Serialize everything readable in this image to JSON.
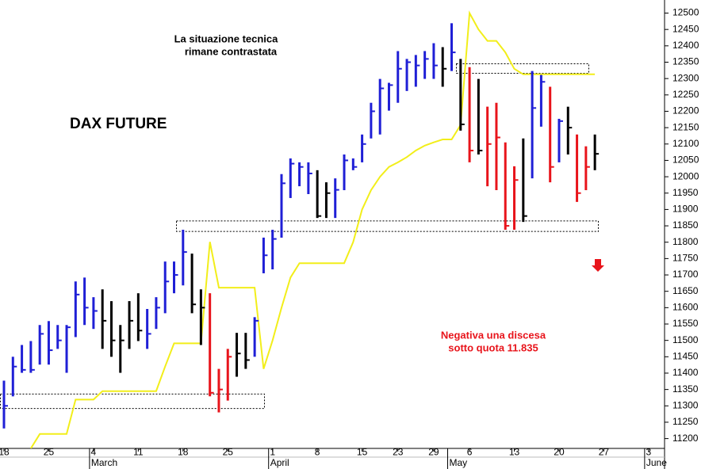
{
  "chart_data": {
    "type": "ohlc",
    "title": "DAX FUTURE",
    "annotations": [
      {
        "lines": [
          "La situazione tecnica",
          "rimane contrastata"
        ],
        "color": "#000000"
      },
      {
        "lines": [
          "Negativa una discesa",
          "sotto quota 11.835"
        ],
        "color": "#e8141b"
      }
    ],
    "categories": [
      "18",
      null,
      null,
      null,
      null,
      "25",
      null,
      null,
      null,
      null,
      "4",
      null,
      null,
      null,
      null,
      "11",
      null,
      null,
      null,
      null,
      "18",
      null,
      null,
      null,
      null,
      "25",
      null,
      null,
      null,
      null,
      "1",
      null,
      null,
      null,
      null,
      "8",
      null,
      null,
      null,
      null,
      "15",
      null,
      null,
      null,
      "23",
      null,
      null,
      null,
      "29",
      null,
      null,
      null,
      "6",
      null,
      null,
      null,
      null,
      "13",
      null,
      null,
      null,
      null,
      "20",
      null,
      null,
      null,
      null,
      "27",
      null,
      null,
      null,
      null,
      "3"
    ],
    "months": [
      null,
      null,
      null,
      null,
      null,
      null,
      null,
      null,
      null,
      null,
      "March",
      null,
      null,
      null,
      null,
      null,
      null,
      null,
      null,
      null,
      null,
      null,
      null,
      null,
      null,
      null,
      null,
      null,
      null,
      null,
      "April",
      null,
      null,
      null,
      null,
      null,
      null,
      null,
      null,
      null,
      null,
      null,
      null,
      null,
      null,
      null,
      null,
      null,
      null,
      null,
      "May",
      null,
      null,
      null,
      null,
      null,
      null,
      null,
      null,
      null,
      null,
      null,
      null,
      null,
      null,
      null,
      null,
      null,
      null,
      null,
      null,
      null,
      "June"
    ],
    "high": [
      11377,
      11450,
      11486,
      11498,
      11547,
      11559,
      11547,
      11547,
      11680,
      11692,
      11632,
      11656,
      11620,
      11547,
      11620,
      11644,
      11596,
      11632,
      11741,
      11741,
      11838,
      11765,
      11656,
      11644,
      11413,
      11474,
      11523,
      11523,
      11571,
      11814,
      11838,
      12008,
      12056,
      12044,
      12044,
      12020,
      11983,
      11995,
      12068,
      12056,
      12129,
      12226,
      12299,
      12287,
      12384,
      12360,
      12372,
      12384,
      12408,
      12396,
      12469,
      12360,
      12335,
      12299,
      12214,
      12226,
      12105,
      12032,
      12117,
      12323,
      12311,
      12275,
      12177,
      12214,
      12129,
      12093,
      12129,
      null,
      null,
      null,
      null,
      null,
      null
    ],
    "low": [
      11231,
      11329,
      11401,
      11401,
      11426,
      11426,
      11474,
      11401,
      11510,
      11547,
      11535,
      11474,
      11450,
      11401,
      11474,
      11498,
      11474,
      11535,
      11583,
      11644,
      11668,
      11583,
      11486,
      11329,
      11280,
      11316,
      11389,
      11413,
      11450,
      11705,
      11717,
      11814,
      11935,
      11971,
      11947,
      11874,
      11874,
      11874,
      11959,
      12020,
      12044,
      12117,
      12129,
      12202,
      12226,
      12262,
      12275,
      12299,
      12299,
      12275,
      12323,
      12141,
      12044,
      12068,
      11971,
      11959,
      11838,
      11838,
      11862,
      11995,
      12153,
      11983,
      12044,
      12068,
      11923,
      11959,
      12020,
      null,
      null,
      null,
      null,
      null,
      null
    ],
    "close": [
      11300,
      11420,
      11410,
      11410,
      11520,
      11470,
      11500,
      11540,
      11640,
      11600,
      11590,
      11560,
      11500,
      11500,
      11560,
      11530,
      11520,
      11600,
      11680,
      11700,
      11770,
      11610,
      11600,
      11340,
      11350,
      11450,
      11460,
      11440,
      11560,
      11760,
      11810,
      11980,
      12040,
      12030,
      12010,
      11880,
      11950,
      11960,
      12050,
      12030,
      12100,
      12200,
      12270,
      12280,
      12330,
      12350,
      12340,
      12360,
      12340,
      12330,
      12380,
      12160,
      12080,
      12080,
      12100,
      12120,
      11850,
      11990,
      11880,
      12210,
      12290,
      12030,
      12170,
      12150,
      11950,
      12030,
      12070,
      null,
      null,
      null,
      null,
      null,
      null
    ],
    "bar_colors": [
      "#1f1fd6",
      "#1f1fd6",
      "#1f1fd6",
      "#1f1fd6",
      "#1f1fd6",
      "#1f1fd6",
      "#1f1fd6",
      "#1f1fd6",
      "#1f1fd6",
      "#1f1fd6",
      "#1f1fd6",
      "#000000",
      "#000000",
      "#000000",
      "#000000",
      "#000000",
      "#1f1fd6",
      "#1f1fd6",
      "#1f1fd6",
      "#1f1fd6",
      "#1f1fd6",
      "#000000",
      "#000000",
      "#e8141b",
      "#e8141b",
      "#e8141b",
      "#000000",
      "#000000",
      "#1f1fd6",
      "#1f1fd6",
      "#1f1fd6",
      "#1f1fd6",
      "#1f1fd6",
      "#1f1fd6",
      "#1f1fd6",
      "#000000",
      "#000000",
      "#1f1fd6",
      "#1f1fd6",
      "#1f1fd6",
      "#1f1fd6",
      "#1f1fd6",
      "#1f1fd6",
      "#1f1fd6",
      "#1f1fd6",
      "#1f1fd6",
      "#1f1fd6",
      "#1f1fd6",
      "#1f1fd6",
      "#000000",
      "#1f1fd6",
      "#000000",
      "#e8141b",
      "#000000",
      "#e8141b",
      "#e8141b",
      "#e8141b",
      "#e8141b",
      "#000000",
      "#1f1fd6",
      "#1f1fd6",
      "#e8141b",
      "#1f1fd6",
      "#000000",
      "#e8141b",
      "#e8141b",
      "#000000",
      null,
      null,
      null,
      null,
      null,
      null
    ],
    "overlay": {
      "color": "#f2ee1a",
      "values": [
        null,
        null,
        null,
        11170,
        11214,
        11214,
        11214,
        11214,
        11319,
        11319,
        11319,
        11345,
        11345,
        11345,
        11345,
        11345,
        11345,
        11345,
        11420,
        11491,
        11491,
        11491,
        11491,
        11801,
        11661,
        11661,
        11661,
        11661,
        11661,
        11413,
        11500,
        11600,
        11692,
        11736,
        11736,
        11736,
        11736,
        11736,
        11736,
        11800,
        11900,
        11959,
        12000,
        12030,
        12044,
        12060,
        12080,
        12095,
        12105,
        12114,
        12114,
        12158,
        12500,
        12450,
        12415,
        12415,
        12380,
        12330,
        12313,
        12313,
        12313,
        12313,
        12313,
        12313,
        12313,
        12313,
        12313,
        null,
        null,
        null,
        null,
        null,
        null
      ]
    },
    "zones": [
      {
        "low": 11292,
        "high": 11336
      },
      {
        "low": 11833,
        "high": 11865
      },
      {
        "low": 12316,
        "high": 12345
      }
    ],
    "ylim": [
      11170,
      12540
    ],
    "yticks": [
      11200,
      11250,
      11300,
      11350,
      11400,
      11450,
      11500,
      11550,
      11600,
      11650,
      11700,
      11750,
      11800,
      11850,
      11900,
      11950,
      12000,
      12050,
      12100,
      12150,
      12200,
      12250,
      12300,
      12350,
      12400,
      12450,
      12500
    ],
    "grid": false
  }
}
